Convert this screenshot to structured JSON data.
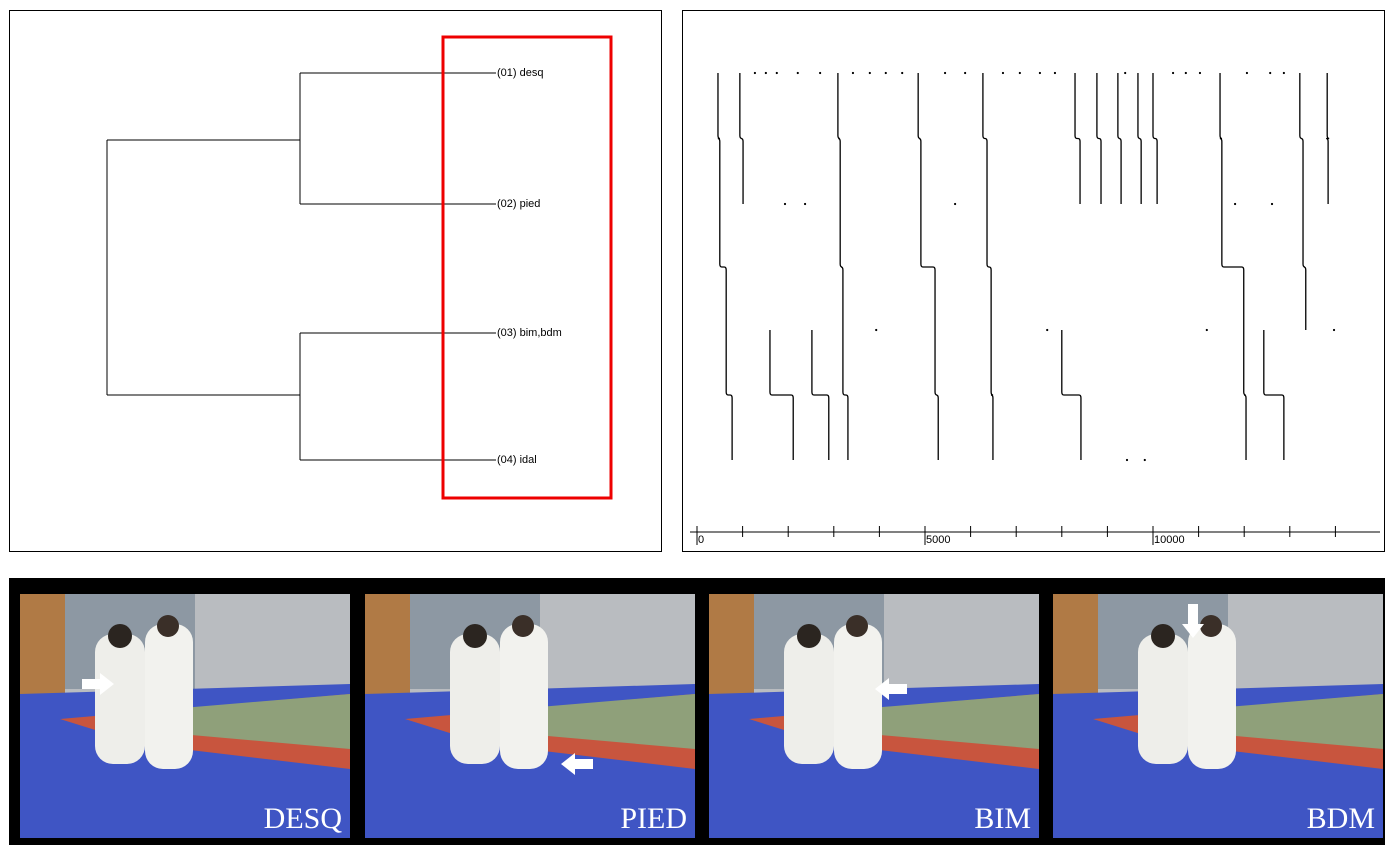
{
  "dendrogram": {
    "leaves": [
      "(01) desq",
      "(02) pied",
      "(03) bim,bdm",
      "(04) idal"
    ]
  },
  "timeline": {
    "xlim": [
      0,
      15000
    ],
    "xticks": [
      0,
      5000,
      10000
    ],
    "minor_xticks": [
      1000,
      2000,
      3000,
      4000,
      6000,
      7000,
      8000,
      9000,
      11000,
      12000,
      13000,
      14000
    ],
    "traces": [
      [
        460,
        500,
        640,
        770
      ],
      [
        940,
        1010,
        null,
        null
      ],
      [
        3090,
        3140,
        3200,
        3310
      ],
      [
        4850,
        4910,
        5220,
        5290
      ],
      [
        6270,
        6360,
        6450,
        6490
      ],
      [
        8290,
        8400,
        null,
        null
      ],
      [
        8770,
        8860,
        null,
        null
      ],
      [
        9230,
        9300,
        null,
        null
      ],
      [
        9670,
        9740,
        null,
        null
      ],
      [
        10000,
        10090,
        null,
        null
      ],
      [
        11470,
        11510,
        11990,
        12040
      ],
      [
        null,
        null,
        1600,
        2110
      ],
      [
        null,
        null,
        2520,
        2890
      ],
      [
        null,
        null,
        8000,
        8420
      ],
      [
        null,
        null,
        12430,
        12870
      ],
      [
        13220,
        13290,
        13350,
        null
      ],
      [
        13820,
        13840,
        null,
        null
      ]
    ],
    "dots": [
      [
        1270,
        1510,
        1750,
        2210,
        2700,
        3420,
        3790,
        4140,
        4500,
        5440,
        5880,
        6710,
        7080,
        7520,
        7850,
        9390,
        10440,
        10720,
        11030,
        12060,
        12570,
        12870
      ],
      [
        1930,
        2370,
        5660,
        11800,
        12610
      ],
      [
        3930,
        7680,
        11180,
        13970
      ],
      [
        9430,
        9820
      ]
    ]
  },
  "photos": {
    "captions": [
      "DESQ",
      "PIED",
      "BIM",
      "BDM"
    ]
  }
}
